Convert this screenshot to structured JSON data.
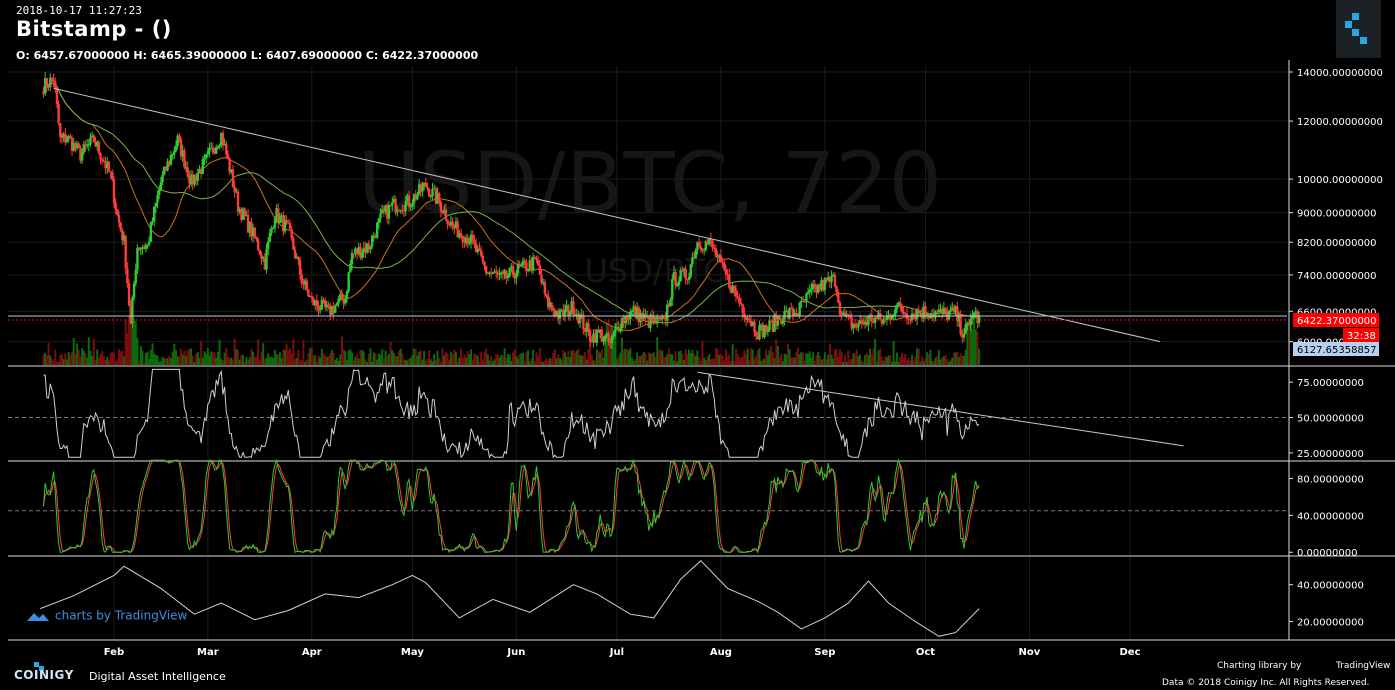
{
  "header": {
    "datetime": "2018-10-17 11:27:23",
    "title": "Bitstamp -  ()",
    "ohlc": "O: 6457.67000000 H: 6465.39000000 L: 6407.69000000 C: 6422.37000000"
  },
  "watermark": {
    "big": "USD/BTC, 720",
    "small": "USD/BTC"
  },
  "branding": {
    "tradingview": "charts by TradingView",
    "coinigy": "COINIGY",
    "coinigy_tagline": "Digital Asset Intelligence",
    "charting_library_by": "Charting library by",
    "tradingview_small": "TradingView",
    "copyright": "Data © 2018   Coinigy Inc. All Rights Reserved."
  },
  "colors": {
    "up": "#2ecc2e",
    "down": "#ff3b3b",
    "price_line": "#ff0000",
    "level_line": "#aac8ee",
    "trend_line": "#c8c8c8",
    "osc_line": "#d0d0d0",
    "stoch_k": "#2ecc2e",
    "stoch_d": "#ff3b3b",
    "grid": "#1c1c1c"
  },
  "chart_data": [
    {
      "type": "candlestick",
      "pane": "price",
      "scale": "log",
      "ylim": [
        5900,
        14000
      ],
      "y_ticks": [
        {
          "value": 14000,
          "label": "14000.00000000"
        },
        {
          "value": 12000,
          "label": "12000.00000000"
        },
        {
          "value": 10000,
          "label": "10000.00000000"
        },
        {
          "value": 9000,
          "label": "9000.00000000"
        },
        {
          "value": 8200,
          "label": "8200.00000000"
        },
        {
          "value": 7400,
          "label": "7400.00000000"
        },
        {
          "value": 6600,
          "label": "6600.00000000"
        },
        {
          "value": 6000,
          "label": "6000.00000000"
        }
      ],
      "x_ticks": [
        "Feb",
        "Mar",
        "Apr",
        "May",
        "Jun",
        "Jul",
        "Aug",
        "Sep",
        "Oct",
        "Nov",
        "Dec"
      ],
      "last_price": {
        "value": 6422.37,
        "label": "6422.37000000",
        "countdown": "32:38"
      },
      "level": {
        "value": 6127.65358857,
        "label": "6127.65358857"
      },
      "close_path": [
        [
          "2018-01-11",
          13400
        ],
        [
          "2018-01-14",
          13700
        ],
        [
          "2018-01-16",
          11300
        ],
        [
          "2018-01-18",
          11400
        ],
        [
          "2018-01-22",
          10800
        ],
        [
          "2018-01-26",
          11300
        ],
        [
          "2018-01-31",
          10100
        ],
        [
          "2018-02-02",
          8900
        ],
        [
          "2018-02-04",
          8200
        ],
        [
          "2018-02-06",
          6300
        ],
        [
          "2018-02-08",
          8100
        ],
        [
          "2018-02-11",
          8100
        ],
        [
          "2018-02-15",
          9900
        ],
        [
          "2018-02-20",
          11300
        ],
        [
          "2018-02-24",
          9900
        ],
        [
          "2018-02-28",
          10500
        ],
        [
          "2018-03-05",
          11500
        ],
        [
          "2018-03-10",
          9200
        ],
        [
          "2018-03-15",
          8300
        ],
        [
          "2018-03-18",
          7700
        ],
        [
          "2018-03-21",
          9000
        ],
        [
          "2018-03-25",
          8500
        ],
        [
          "2018-03-29",
          7300
        ],
        [
          "2018-04-01",
          6800
        ],
        [
          "2018-04-06",
          6600
        ],
        [
          "2018-04-11",
          6900
        ],
        [
          "2018-04-13",
          7900
        ],
        [
          "2018-04-18",
          8100
        ],
        [
          "2018-04-22",
          8900
        ],
        [
          "2018-04-25",
          9200
        ],
        [
          "2018-04-30",
          9300
        ],
        [
          "2018-05-05",
          9800
        ],
        [
          "2018-05-09",
          9300
        ],
        [
          "2018-05-13",
          8600
        ],
        [
          "2018-05-18",
          8300
        ],
        [
          "2018-05-23",
          7500
        ],
        [
          "2018-05-28",
          7300
        ],
        [
          "2018-06-01",
          7500
        ],
        [
          "2018-06-07",
          7700
        ],
        [
          "2018-06-10",
          6800
        ],
        [
          "2018-06-14",
          6500
        ],
        [
          "2018-06-18",
          6700
        ],
        [
          "2018-06-23",
          6100
        ],
        [
          "2018-06-26",
          6150
        ],
        [
          "2018-06-29",
          5950
        ],
        [
          "2018-07-02",
          6400
        ],
        [
          "2018-07-06",
          6600
        ],
        [
          "2018-07-10",
          6400
        ],
        [
          "2018-07-15",
          6350
        ],
        [
          "2018-07-18",
          7300
        ],
        [
          "2018-07-22",
          7400
        ],
        [
          "2018-07-25",
          8200
        ],
        [
          "2018-07-29",
          8150
        ],
        [
          "2018-08-01",
          7600
        ],
        [
          "2018-08-05",
          7000
        ],
        [
          "2018-08-09",
          6500
        ],
        [
          "2018-08-12",
          6200
        ],
        [
          "2018-08-15",
          6250
        ],
        [
          "2018-08-19",
          6500
        ],
        [
          "2018-08-24",
          6600
        ],
        [
          "2018-08-28",
          7000
        ],
        [
          "2018-09-01",
          7200
        ],
        [
          "2018-09-04",
          7300
        ],
        [
          "2018-09-06",
          6500
        ],
        [
          "2018-09-10",
          6300
        ],
        [
          "2018-09-15",
          6450
        ],
        [
          "2018-09-19",
          6400
        ],
        [
          "2018-09-22",
          6700
        ],
        [
          "2018-09-26",
          6550
        ],
        [
          "2018-10-01",
          6600
        ],
        [
          "2018-10-05",
          6550
        ],
        [
          "2018-10-10",
          6550
        ],
        [
          "2018-10-12",
          6200
        ],
        [
          "2018-10-14",
          6250
        ],
        [
          "2018-10-15",
          6600
        ],
        [
          "2018-10-17",
          6422
        ]
      ],
      "trend_line": [
        [
          "2018-01-14",
          13300
        ],
        [
          "2018-12-10",
          6000
        ]
      ],
      "volume_spikes": [
        "2018-02-06",
        "2018-06-29",
        "2018-10-15"
      ]
    },
    {
      "type": "line",
      "pane": "oscillator_1",
      "ylim": [
        20,
        85
      ],
      "y_ticks": [
        {
          "value": 75,
          "label": "75.00000000"
        },
        {
          "value": 50,
          "label": "50.00000000"
        },
        {
          "value": 25,
          "label": "25.00000000"
        }
      ],
      "midline": 50,
      "trend_line": [
        [
          "2018-07-25",
          82
        ],
        [
          "2018-12-17",
          30
        ]
      ]
    },
    {
      "type": "line",
      "pane": "stochastic",
      "ylim": [
        -3,
        98
      ],
      "y_ticks": [
        {
          "value": 80,
          "label": "80.00000000"
        },
        {
          "value": 40,
          "label": "40.00000000"
        },
        {
          "value": 0,
          "label": "0.00000000"
        }
      ],
      "midline": 45
    },
    {
      "type": "line",
      "pane": "oscillator_3",
      "ylim": [
        10,
        55
      ],
      "y_ticks": [
        {
          "value": 40,
          "label": "40.00000000"
        },
        {
          "value": 20,
          "label": "20.00000000"
        }
      ],
      "points": [
        [
          "2018-01-10",
          27
        ],
        [
          "2018-01-20",
          34
        ],
        [
          "2018-02-01",
          45
        ],
        [
          "2018-02-04",
          50
        ],
        [
          "2018-02-15",
          38
        ],
        [
          "2018-02-25",
          24
        ],
        [
          "2018-03-05",
          30
        ],
        [
          "2018-03-15",
          21
        ],
        [
          "2018-03-25",
          26
        ],
        [
          "2018-04-05",
          35
        ],
        [
          "2018-04-15",
          33
        ],
        [
          "2018-04-25",
          40
        ],
        [
          "2018-05-01",
          45
        ],
        [
          "2018-05-05",
          41
        ],
        [
          "2018-05-15",
          22
        ],
        [
          "2018-05-25",
          32
        ],
        [
          "2018-06-05",
          25
        ],
        [
          "2018-06-18",
          40
        ],
        [
          "2018-06-25",
          35
        ],
        [
          "2018-07-05",
          24
        ],
        [
          "2018-07-12",
          22
        ],
        [
          "2018-07-20",
          43
        ],
        [
          "2018-07-26",
          53
        ],
        [
          "2018-08-03",
          38
        ],
        [
          "2018-08-12",
          31
        ],
        [
          "2018-08-18",
          25
        ],
        [
          "2018-08-25",
          16
        ],
        [
          "2018-09-01",
          22
        ],
        [
          "2018-09-08",
          30
        ],
        [
          "2018-09-14",
          42
        ],
        [
          "2018-09-20",
          30
        ],
        [
          "2018-09-28",
          20
        ],
        [
          "2018-10-05",
          12
        ],
        [
          "2018-10-10",
          14
        ],
        [
          "2018-10-17",
          27
        ]
      ]
    }
  ]
}
